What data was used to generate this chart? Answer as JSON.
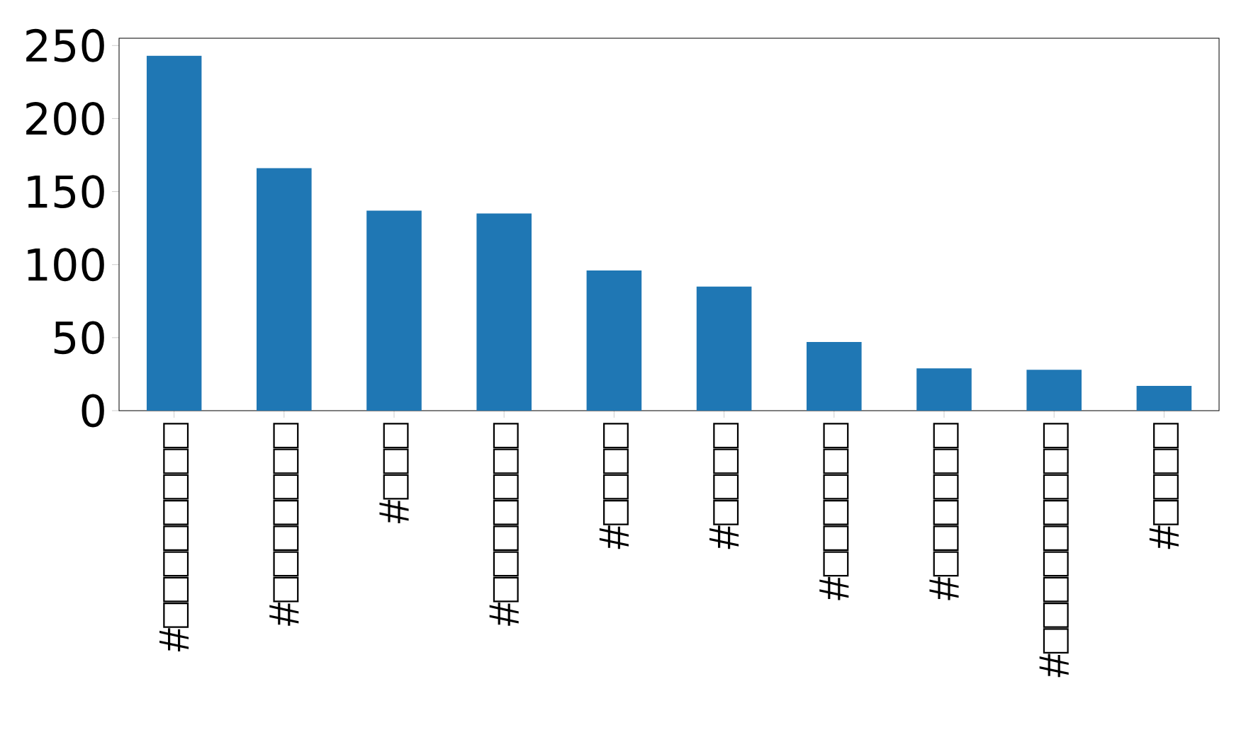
{
  "chart_data": {
    "type": "bar",
    "categories": [
      "#□□□□□□□□",
      "#□□□□□□□",
      "#□□□",
      "#□□□□□□□",
      "#□□□□",
      "#□□□□",
      "#□□□□□□",
      "#□□□□□□",
      "#□□□□□□□□□",
      "#□□□□"
    ],
    "values": [
      243,
      166,
      137,
      135,
      96,
      85,
      47,
      29,
      28,
      17
    ],
    "color": "#1f77b4",
    "ylim": [
      0,
      255
    ],
    "yticks": [
      0,
      50,
      100,
      150,
      200,
      250
    ]
  }
}
